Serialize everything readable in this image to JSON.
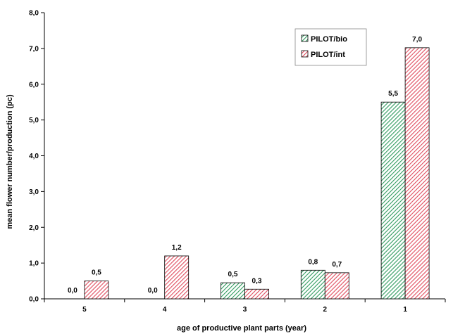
{
  "chart_data": {
    "type": "bar",
    "categories": [
      "5",
      "4",
      "3",
      "2",
      "1"
    ],
    "series": [
      {
        "name": "PILOT/bio",
        "values": [
          0.0,
          0.0,
          0.45,
          0.8,
          5.5
        ],
        "labels": [
          "0,0",
          "0,0",
          "0,5",
          "0,8",
          "5,5"
        ],
        "color": "#4fb07a",
        "hatch": "diagonal-green"
      },
      {
        "name": "PILOT/int",
        "values": [
          0.5,
          1.2,
          0.27,
          0.73,
          7.02
        ],
        "labels": [
          "0,5",
          "1,2",
          "0,3",
          "0,7",
          "7,0"
        ],
        "color": "#e8606e",
        "hatch": "diagonal-red"
      }
    ],
    "xlabel": "age of productive plant parts (year)",
    "ylabel": "mean flower number/production (pc)",
    "ylim": [
      0,
      8
    ],
    "yticks": [
      0,
      1,
      2,
      3,
      4,
      5,
      6,
      7,
      8
    ],
    "ytick_labels": [
      "0,0",
      "1,0",
      "2,0",
      "3,0",
      "4,0",
      "5,0",
      "6,0",
      "7,0",
      "8,0"
    ],
    "grid": false,
    "legend_position": "top-right"
  }
}
